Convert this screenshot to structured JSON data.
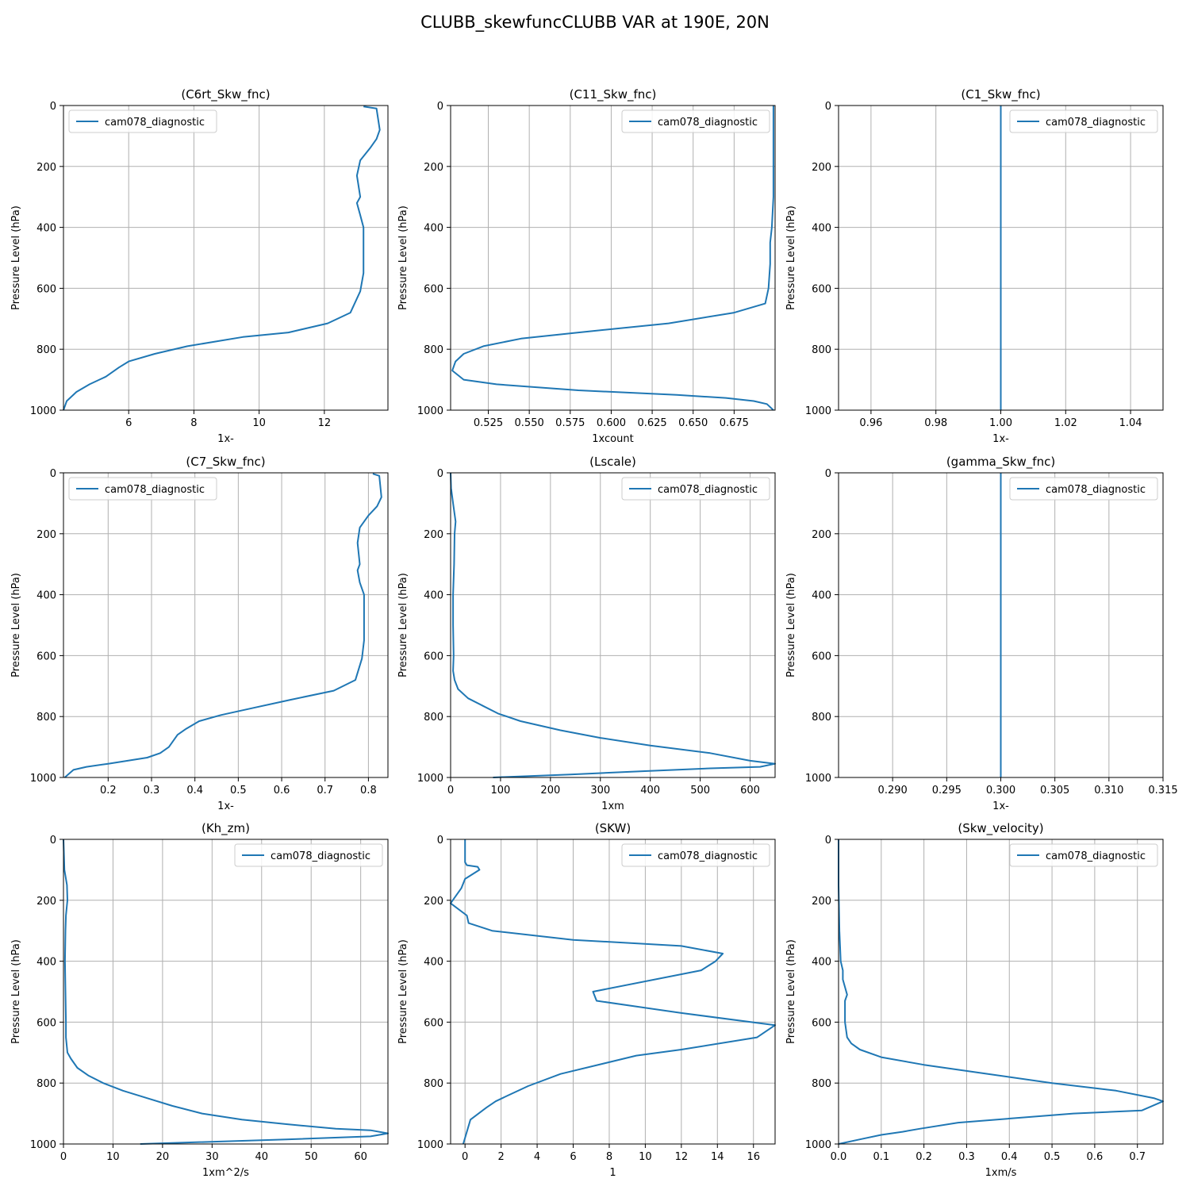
{
  "figure": {
    "title": "CLUBB_skewfuncCLUBB VAR at 190E, 20N",
    "line_color": "#1f77b4",
    "grid_color": "#b0b0b0"
  },
  "chart_data": [
    {
      "type": "line",
      "title": "(C6rt_Skw_fnc)",
      "xlabel": "1x-",
      "ylabel": "Pressure Level (hPa)",
      "xlim": [
        4.0,
        13.95
      ],
      "ylim": [
        1000,
        0
      ],
      "xticks": [
        6,
        8,
        10,
        12
      ],
      "yticks": [
        0,
        200,
        400,
        600,
        800,
        1000
      ],
      "grid": true,
      "legend_position": "upper left",
      "series": [
        {
          "name": "cam078_diagnostic",
          "x": [
            13.2,
            13.6,
            13.7,
            13.6,
            13.4,
            13.1,
            13.0,
            13.1,
            13.0,
            13.1,
            13.2,
            13.2,
            13.2,
            13.1,
            12.8,
            12.1,
            10.9,
            9.5,
            7.8,
            6.8,
            6.0,
            5.7,
            5.3,
            4.8,
            4.4,
            4.1,
            4.0
          ],
          "y": [
            3,
            10,
            80,
            110,
            140,
            180,
            230,
            300,
            320,
            360,
            400,
            460,
            550,
            610,
            680,
            715,
            745,
            760,
            790,
            815,
            840,
            860,
            890,
            915,
            940,
            970,
            1000
          ]
        }
      ]
    },
    {
      "type": "line",
      "title": "(C11_Skw_fnc)",
      "xlabel": "1xcount",
      "ylabel": "Pressure Level (hPa)",
      "xlim": [
        0.502,
        0.7
      ],
      "ylim": [
        1000,
        0
      ],
      "xticks": [
        0.525,
        0.55,
        0.575,
        0.6,
        0.625,
        0.65,
        0.675
      ],
      "xticklabels": [
        "0.525",
        "0.550",
        "0.575",
        "0.600",
        "0.625",
        "0.650",
        "0.675"
      ],
      "yticks": [
        0,
        200,
        400,
        600,
        800,
        1000
      ],
      "grid": true,
      "legend_position": "upper right",
      "series": [
        {
          "name": "cam078_diagnostic",
          "x": [
            0.699,
            0.699,
            0.699,
            0.699,
            0.698,
            0.697,
            0.697,
            0.696,
            0.694,
            0.675,
            0.635,
            0.58,
            0.545,
            0.522,
            0.51,
            0.505,
            0.503,
            0.51,
            0.53,
            0.58,
            0.64,
            0.67,
            0.687,
            0.695,
            0.699
          ],
          "y": [
            0,
            100,
            200,
            300,
            400,
            450,
            520,
            600,
            650,
            680,
            715,
            745,
            765,
            790,
            815,
            840,
            870,
            900,
            915,
            935,
            950,
            960,
            970,
            980,
            1000
          ]
        }
      ]
    },
    {
      "type": "line",
      "title": "(C1_Skw_fnc)",
      "xlabel": "1x-",
      "ylabel": "Pressure Level (hPa)",
      "xlim": [
        0.95,
        1.05
      ],
      "ylim": [
        1000,
        0
      ],
      "xticks": [
        0.96,
        0.98,
        1.0,
        1.02,
        1.04
      ],
      "xticklabels": [
        "0.96",
        "0.98",
        "1.00",
        "1.02",
        "1.04"
      ],
      "yticks": [
        0,
        200,
        400,
        600,
        800,
        1000
      ],
      "grid": true,
      "legend_position": "upper right",
      "series": [
        {
          "name": "cam078_diagnostic",
          "x": [
            1.0,
            1.0
          ],
          "y": [
            0,
            1000
          ]
        }
      ]
    },
    {
      "type": "line",
      "title": "(C7_Skw_fnc)",
      "xlabel": "1x-",
      "ylabel": "Pressure Level (hPa)",
      "xlim": [
        0.097,
        0.845
      ],
      "ylim": [
        1000,
        0
      ],
      "xticks": [
        0.2,
        0.3,
        0.4,
        0.5,
        0.6,
        0.7,
        0.8
      ],
      "xticklabels": [
        "0.2",
        "0.3",
        "0.4",
        "0.5",
        "0.6",
        "0.7",
        "0.8"
      ],
      "yticks": [
        0,
        200,
        400,
        600,
        800,
        1000
      ],
      "grid": true,
      "legend_position": "upper left",
      "series": [
        {
          "name": "cam078_diagnostic",
          "x": [
            0.81,
            0.825,
            0.83,
            0.82,
            0.8,
            0.78,
            0.775,
            0.78,
            0.775,
            0.78,
            0.79,
            0.79,
            0.79,
            0.785,
            0.77,
            0.72,
            0.62,
            0.54,
            0.46,
            0.41,
            0.38,
            0.36,
            0.34,
            0.32,
            0.29,
            0.2,
            0.15,
            0.12,
            0.1
          ],
          "y": [
            3,
            10,
            80,
            110,
            140,
            180,
            230,
            300,
            320,
            360,
            400,
            460,
            550,
            610,
            680,
            715,
            745,
            770,
            795,
            815,
            840,
            860,
            900,
            920,
            935,
            955,
            965,
            975,
            1000
          ]
        }
      ]
    },
    {
      "type": "line",
      "title": "(Lscale)",
      "xlabel": "1xm",
      "ylabel": "Pressure Level (hPa)",
      "xlim": [
        0,
        650
      ],
      "ylim": [
        1000,
        0
      ],
      "xticks": [
        0,
        100,
        200,
        300,
        400,
        500,
        600
      ],
      "yticks": [
        0,
        200,
        400,
        600,
        800,
        1000
      ],
      "grid": true,
      "legend_position": "upper right",
      "series": [
        {
          "name": "cam078_diagnostic",
          "x": [
            0,
            1,
            5,
            10,
            8,
            7,
            5,
            5,
            6,
            5,
            8,
            15,
            35,
            65,
            95,
            140,
            220,
            300,
            400,
            520,
            600,
            650,
            620,
            520,
            380,
            240,
            85
          ],
          "y": [
            0,
            50,
            100,
            160,
            200,
            300,
            400,
            500,
            600,
            650,
            680,
            710,
            740,
            765,
            790,
            815,
            845,
            870,
            895,
            920,
            945,
            955,
            965,
            970,
            980,
            990,
            1000
          ]
        }
      ]
    },
    {
      "type": "line",
      "title": "(gamma_Skw_fnc)",
      "xlabel": "1x-",
      "ylabel": "Pressure Level (hPa)",
      "xlim": [
        0.285,
        0.315
      ],
      "ylim": [
        1000,
        0
      ],
      "xticks": [
        0.29,
        0.295,
        0.3,
        0.305,
        0.31,
        0.315
      ],
      "xticklabels": [
        "0.290",
        "0.295",
        "0.300",
        "0.305",
        "0.310",
        "0.315"
      ],
      "yticks": [
        0,
        200,
        400,
        600,
        800,
        1000
      ],
      "grid": true,
      "legend_position": "upper right",
      "series": [
        {
          "name": "cam078_diagnostic",
          "x": [
            0.3,
            0.3
          ],
          "y": [
            0,
            1000
          ]
        }
      ]
    },
    {
      "type": "line",
      "title": "(Kh_zm)",
      "xlabel": "1xm^2/s",
      "ylabel": "Pressure Level (hPa)",
      "xlim": [
        0,
        65.5
      ],
      "ylim": [
        1000,
        0
      ],
      "xticks": [
        0,
        10,
        20,
        30,
        40,
        50,
        60
      ],
      "yticks": [
        0,
        200,
        400,
        600,
        800,
        1000
      ],
      "grid": true,
      "legend_position": "upper right",
      "series": [
        {
          "name": "cam078_diagnostic",
          "x": [
            0.0,
            0.2,
            0.7,
            0.8,
            0.5,
            0.4,
            0.3,
            0.4,
            0.5,
            0.5,
            0.8,
            1.5,
            2.8,
            5.0,
            8.0,
            12.0,
            17.0,
            22.0,
            28.0,
            36.0,
            45.0,
            55.0,
            62.0,
            65.5,
            62.0,
            45.0,
            15.5
          ],
          "y": [
            0,
            100,
            150,
            200,
            250,
            300,
            400,
            500,
            600,
            650,
            700,
            720,
            750,
            775,
            800,
            825,
            850,
            875,
            900,
            920,
            935,
            950,
            955,
            965,
            975,
            985,
            1000
          ]
        }
      ]
    },
    {
      "type": "line",
      "title": "(SKW)",
      "xlabel": "1",
      "ylabel": "Pressure Level (hPa)",
      "xlim": [
        -0.8,
        17.2
      ],
      "ylim": [
        1000,
        0
      ],
      "xticks": [
        0,
        2,
        4,
        6,
        8,
        10,
        12,
        14,
        16
      ],
      "yticks": [
        0,
        200,
        400,
        600,
        800,
        1000
      ],
      "grid": true,
      "legend_position": "upper right",
      "series": [
        {
          "name": "cam078_diagnostic",
          "x": [
            0.0,
            0.0,
            0.0,
            0.1,
            0.7,
            0.8,
            0.0,
            -0.2,
            -0.8,
            0.1,
            0.2,
            1.5,
            6.0,
            12.0,
            14.3,
            13.9,
            13.1,
            7.1,
            7.3,
            12.0,
            17.2,
            16.2,
            12.0,
            9.5,
            5.3,
            3.5,
            2.4,
            1.7,
            1.2,
            0.3,
            -0.1
          ],
          "y": [
            0,
            50,
            75,
            85,
            90,
            100,
            130,
            160,
            210,
            250,
            275,
            300,
            330,
            350,
            375,
            400,
            430,
            500,
            530,
            570,
            610,
            650,
            690,
            710,
            770,
            810,
            840,
            860,
            880,
            920,
            1000
          ]
        }
      ]
    },
    {
      "type": "line",
      "title": "(Skw_velocity)",
      "xlabel": "1xm/s",
      "ylabel": "Pressure Level (hPa)",
      "xlim": [
        0.0,
        0.76
      ],
      "ylim": [
        1000,
        0
      ],
      "xticks": [
        0.0,
        0.1,
        0.2,
        0.3,
        0.4,
        0.5,
        0.6,
        0.7
      ],
      "xticklabels": [
        "0.0",
        "0.1",
        "0.2",
        "0.3",
        "0.4",
        "0.5",
        "0.6",
        "0.7"
      ],
      "yticks": [
        0,
        200,
        400,
        600,
        800,
        1000
      ],
      "grid": true,
      "legend_position": "upper right",
      "series": [
        {
          "name": "cam078_diagnostic",
          "x": [
            0.0,
            0.0,
            0.002,
            0.005,
            0.01,
            0.01,
            0.02,
            0.015,
            0.015,
            0.02,
            0.03,
            0.05,
            0.1,
            0.2,
            0.35,
            0.5,
            0.65,
            0.74,
            0.76,
            0.71,
            0.55,
            0.28,
            0.19,
            0.15,
            0.1,
            0.05,
            0.0
          ],
          "y": [
            0,
            150,
            300,
            400,
            430,
            460,
            510,
            530,
            600,
            650,
            670,
            690,
            715,
            740,
            770,
            800,
            825,
            850,
            860,
            890,
            900,
            930,
            950,
            960,
            970,
            985,
            1000
          ]
        }
      ]
    }
  ]
}
